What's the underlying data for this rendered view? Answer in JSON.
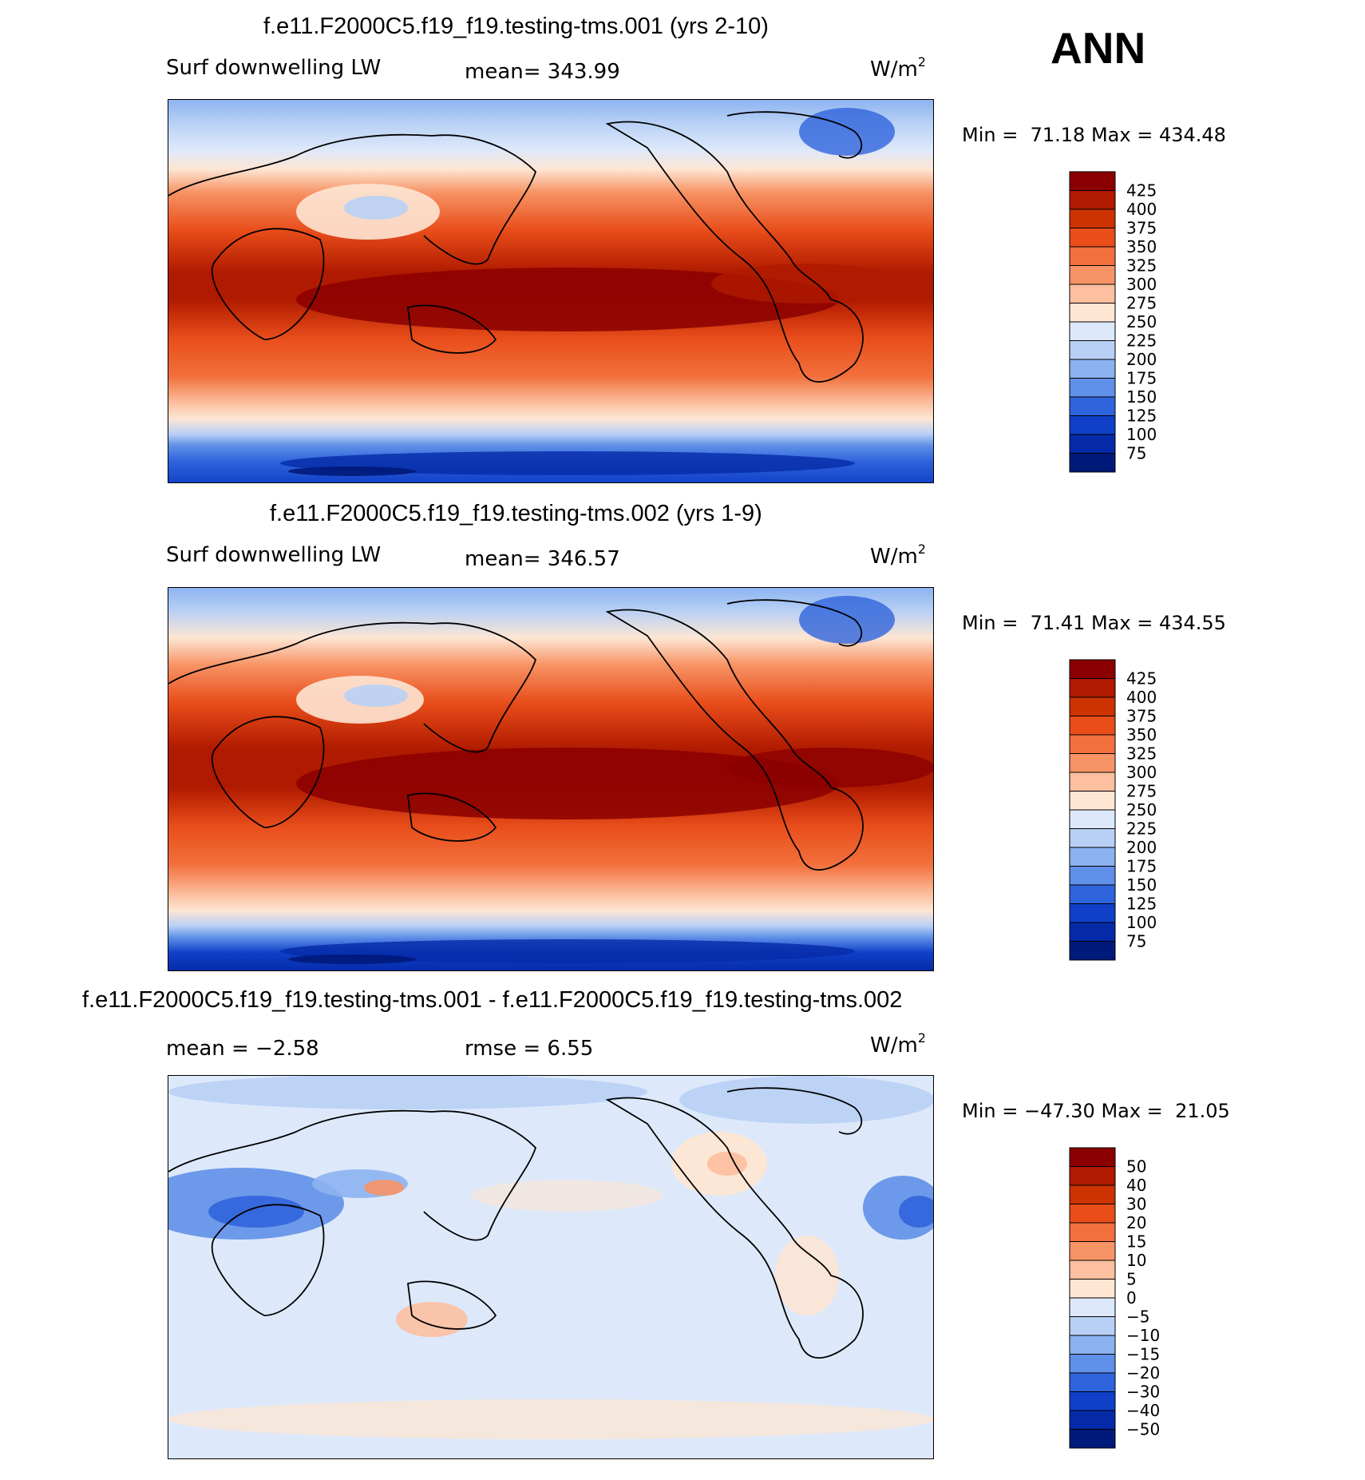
{
  "season": "ANN",
  "panels": [
    {
      "title": "f.e11.F2000C5.f19_f19.testing-tms.001 (yrs 2-10)",
      "left_label": "Surf downwelling LW",
      "center_label": "mean= 343.99",
      "units": "W/m",
      "units_exp": "2",
      "min_label": "Min =",
      "min_value": "71.18",
      "max_label": "Max =",
      "max_value": "434.48",
      "colorbar_labels": [
        "425",
        "400",
        "375",
        "350",
        "325",
        "300",
        "275",
        "250",
        "225",
        "200",
        "175",
        "150",
        "125",
        "100",
        "75"
      ]
    },
    {
      "title": "f.e11.F2000C5.f19_f19.testing-tms.002 (yrs 1-9)",
      "left_label": "Surf downwelling LW",
      "center_label": "mean= 346.57",
      "units": "W/m",
      "units_exp": "2",
      "min_label": "Min =",
      "min_value": "71.41",
      "max_label": "Max =",
      "max_value": "434.55",
      "colorbar_labels": [
        "425",
        "400",
        "375",
        "350",
        "325",
        "300",
        "275",
        "250",
        "225",
        "200",
        "175",
        "150",
        "125",
        "100",
        "75"
      ]
    },
    {
      "title": "f.e11.F2000C5.f19_f19.testing-tms.001 - f.e11.F2000C5.f19_f19.testing-tms.002",
      "left_label": "mean =   −2.58",
      "center_label": "rmse =    6.55",
      "units": "W/m",
      "units_exp": "2",
      "min_label": "Min =",
      "min_value": "−47.30",
      "max_label": "Max =",
      "max_value": "21.05",
      "colorbar_labels": [
        "50",
        "40",
        "30",
        "20",
        "15",
        "10",
        "5",
        "0",
        "−5",
        "−10",
        "−15",
        "−20",
        "−30",
        "−40",
        "−50"
      ]
    }
  ],
  "palettes": {
    "field": [
      "#8b0000",
      "#b01a00",
      "#cc3300",
      "#e84d1a",
      "#f2703d",
      "#f79466",
      "#fcc0a0",
      "#fde6d4",
      "#dde9fa",
      "#b8d0f5",
      "#8cb3f0",
      "#6090e8",
      "#3064dc",
      "#1040c8",
      "#052aa8",
      "#001a7a"
    ],
    "diff": [
      "#8b0000",
      "#b01a00",
      "#cc3300",
      "#e84d1a",
      "#f2703d",
      "#f79466",
      "#fcc0a0",
      "#fde6d4",
      "#dde9fa",
      "#b8d0f5",
      "#8cb3f0",
      "#6090e8",
      "#3064dc",
      "#1040c8",
      "#052aa8",
      "#001a7a"
    ]
  }
}
